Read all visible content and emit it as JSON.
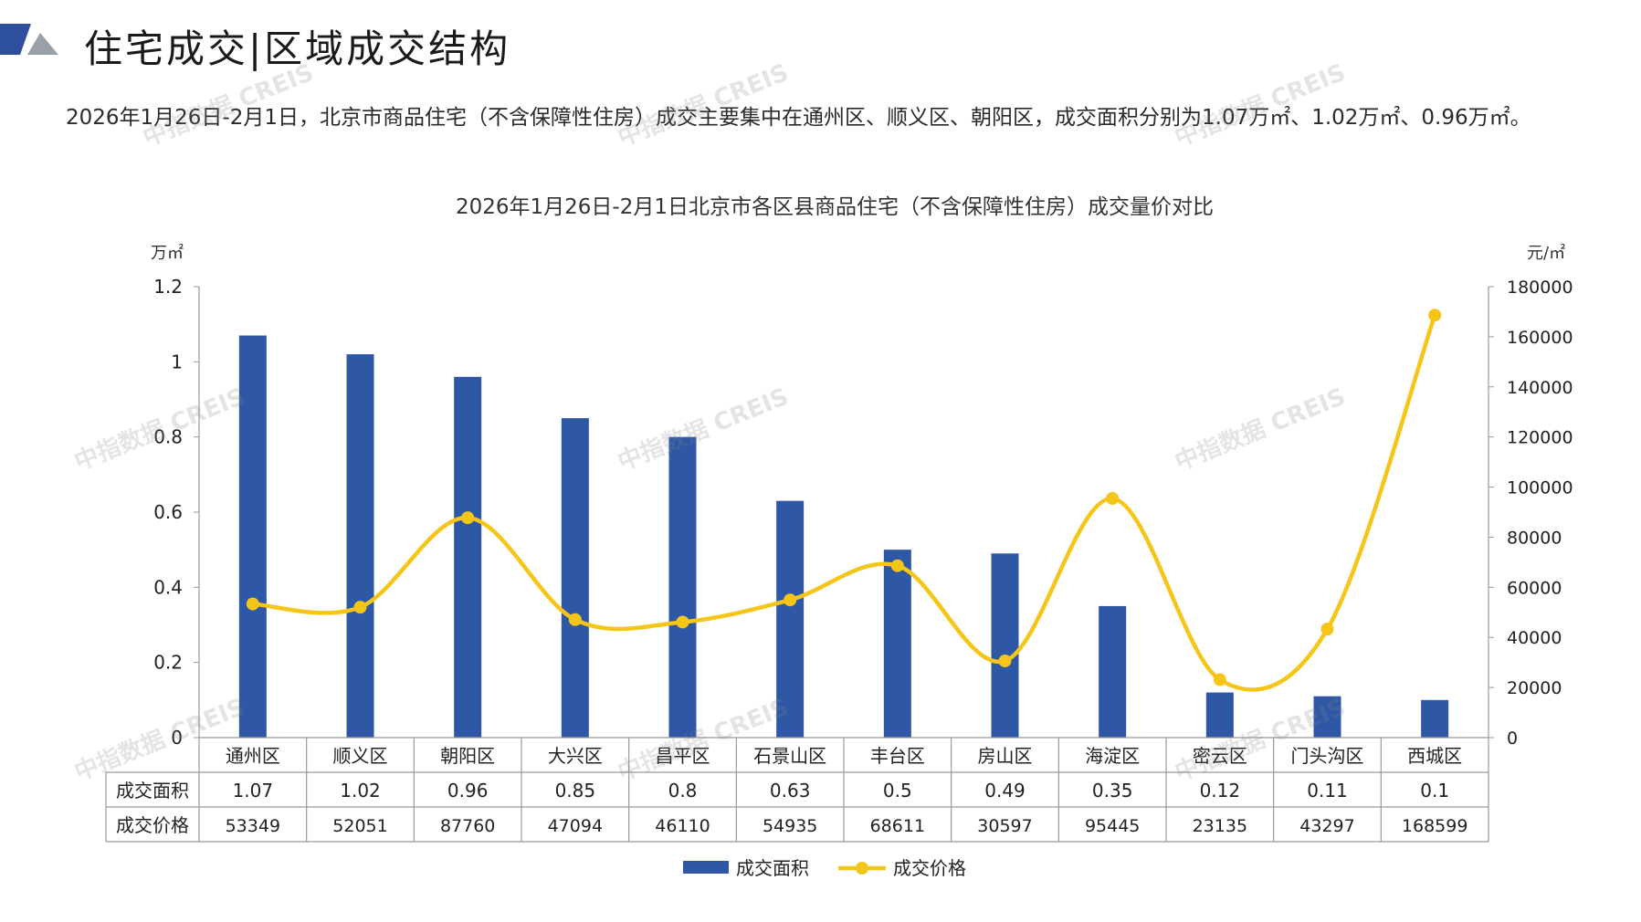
{
  "page": {
    "title": "住宅成交|区域成交结构",
    "description": "2026年1月26日-2月1日，北京市商品住宅（不含保障性住房）成交主要集中在通州区、顺义区、朝阳区，成交面积分别为1.07万㎡、1.02万㎡、0.96万㎡。",
    "watermark": "中指数据 CREIS"
  },
  "colors": {
    "bar": "#2e57a6",
    "line": "#f5c518",
    "logo_blue": "#2e4f9c",
    "logo_gray": "#9aa0a8"
  },
  "chart_data": {
    "type": "bar",
    "title": "2026年1月26日-2月1日北京市各区县商品住宅（不含保障性住房）成交量价对比",
    "y_left_unit": "万㎡",
    "y_right_unit": "元/㎡",
    "y_left_ticks": [
      "1.2",
      "1",
      "0.8",
      "0.6",
      "0.4",
      "0.2",
      "0"
    ],
    "y_right_ticks": [
      "180000",
      "160000",
      "140000",
      "120000",
      "100000",
      "80000",
      "60000",
      "40000",
      "20000",
      "0"
    ],
    "ylim_left": [
      0,
      1.2
    ],
    "ylim_right": [
      0,
      180000
    ],
    "categories": [
      "通州区",
      "顺义区",
      "朝阳区",
      "大兴区",
      "昌平区",
      "石景山区",
      "丰台区",
      "房山区",
      "海淀区",
      "密云区",
      "门头沟区",
      "西城区"
    ],
    "series": [
      {
        "name": "成交面积",
        "type": "bar",
        "axis": "left",
        "values": [
          1.07,
          1.02,
          0.96,
          0.85,
          0.8,
          0.63,
          0.5,
          0.49,
          0.35,
          0.12,
          0.11,
          0.1
        ],
        "labels": [
          "1.07",
          "1.02",
          "0.96",
          "0.85",
          "0.8",
          "0.63",
          "0.5",
          "0.49",
          "0.35",
          "0.12",
          "0.11",
          "0.1"
        ]
      },
      {
        "name": "成交价格",
        "type": "line",
        "axis": "right",
        "values": [
          53349,
          52051,
          87760,
          47094,
          46110,
          54935,
          68611,
          30597,
          95445,
          23135,
          43297,
          168599
        ],
        "labels": [
          "53349",
          "52051",
          "87760",
          "47094",
          "46110",
          "54935",
          "68611",
          "30597",
          "95445",
          "23135",
          "43297",
          "168599"
        ]
      }
    ],
    "legend": {
      "position": "bottom",
      "entries": [
        "成交面积",
        "成交价格"
      ]
    },
    "grid": false
  }
}
